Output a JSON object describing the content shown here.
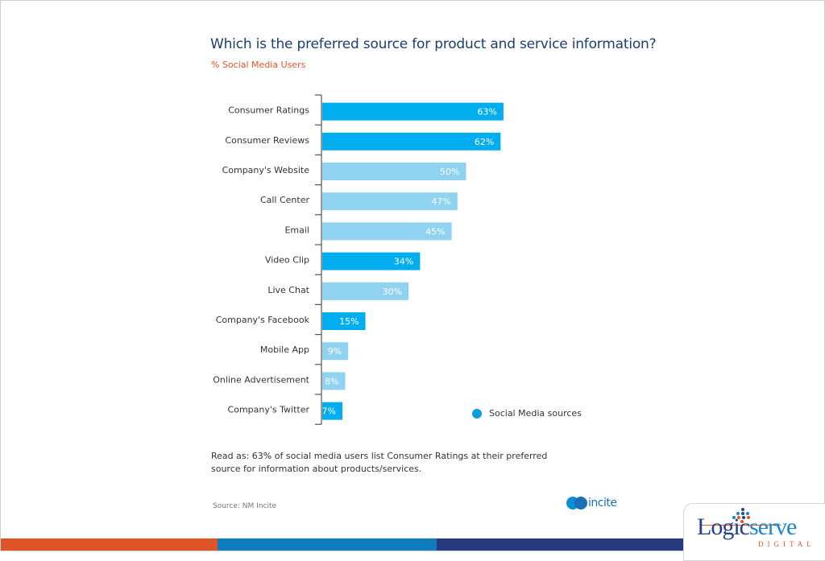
{
  "header": {
    "title": "Which is the preferred source for product and service information?",
    "subtitle": "% Social Media Users"
  },
  "chart_data": {
    "type": "bar",
    "orientation": "horizontal",
    "title": "Which is the preferred source for product and service information?",
    "subtitle": "% Social Media Users",
    "xlabel": "",
    "ylabel": "",
    "xlim": [
      0,
      100
    ],
    "grid": false,
    "categories": [
      "Consumer Ratings",
      "Consumer Reviews",
      "Company's Website",
      "Call Center",
      "Email",
      "Video Clip",
      "Live Chat",
      "Company's Facebook",
      "Mobile App",
      "Online Advertisement",
      "Company's Twitter"
    ],
    "values": [
      63,
      62,
      50,
      47,
      45,
      34,
      30,
      15,
      9,
      8,
      7
    ],
    "value_labels": [
      "63%",
      "62%",
      "50%",
      "47%",
      "45%",
      "34%",
      "30%",
      "15%",
      "9%",
      "8%",
      "7%"
    ],
    "social_media_source": [
      true,
      true,
      false,
      false,
      false,
      true,
      false,
      true,
      false,
      false,
      true
    ],
    "colors": {
      "social_media": "#00aeef",
      "other": "#8fd3f0",
      "axis": "#555555"
    },
    "legend": {
      "entries": [
        "Social Media sources"
      ],
      "placement": "bottom-right"
    }
  },
  "legend": {
    "label": "Social Media sources"
  },
  "note": "Read as: 63% of social media users list Consumer Ratings at their preferred source for information about products/services.",
  "source": "Source: NM Incite",
  "logos": {
    "nm_incite": "incite",
    "logicserve_main_a": "Logic",
    "logicserve_main_b": "serve",
    "logicserve_sub": "DIGITAL"
  }
}
